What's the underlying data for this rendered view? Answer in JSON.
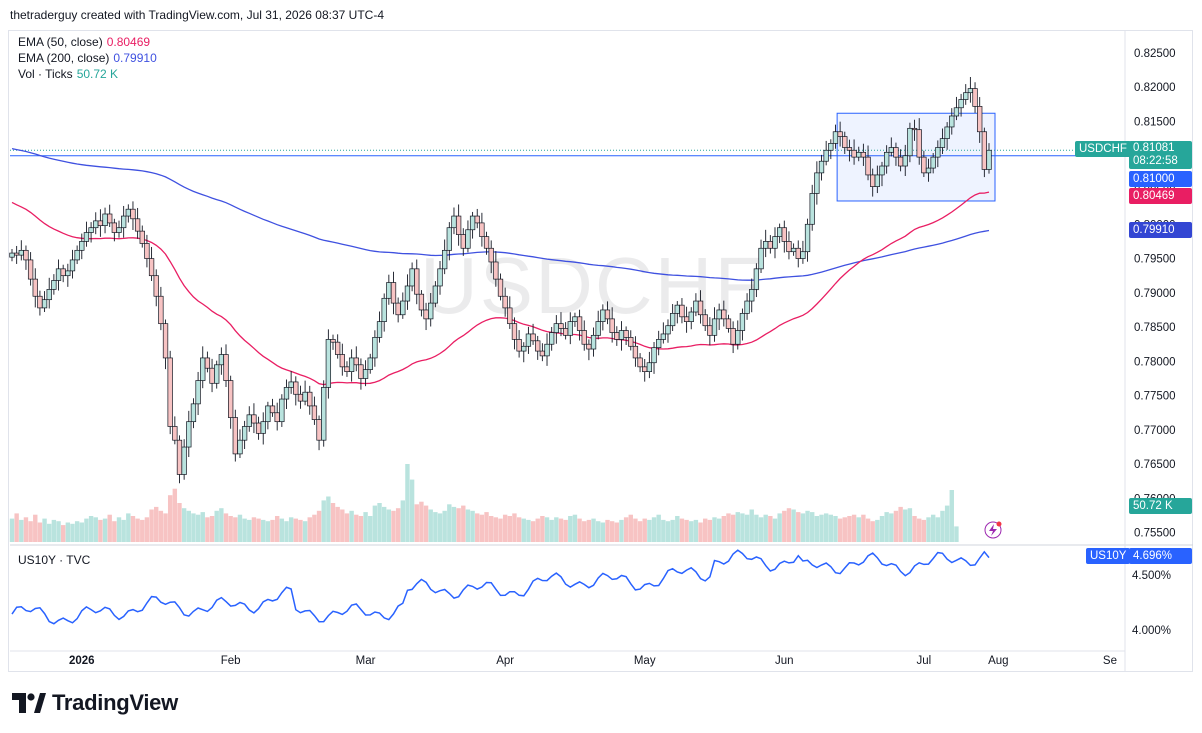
{
  "header": {
    "attribution": "thetraderguy created with TradingView.com, Jul 31, 2026 08:37 UTC-4"
  },
  "legend": {
    "ema50": {
      "label": "EMA (50, close)",
      "value": "0.80469",
      "color": "#e91e63"
    },
    "ema200": {
      "label": "EMA (200, close)",
      "value": "0.79910",
      "color": "#3f51e0"
    },
    "vol": {
      "label": "Vol · Ticks",
      "value": "50.72 K",
      "color": "#26a69a"
    }
  },
  "watermark": "USDCHF",
  "price_tags": {
    "symbol": {
      "name": "USDCHF",
      "price": "0.81081",
      "countdown": "08:22:58"
    },
    "hline": "0.81000",
    "ema50": "0.80469",
    "ema200": "0.79910",
    "volume": "50.72 K"
  },
  "lower_pane": {
    "title": "US10Y · TVC",
    "symbol_tag": "US10Y",
    "value_tag": "4.696%",
    "ticks": [
      "4.500%",
      "4.000%"
    ]
  },
  "brand": {
    "name": "TradingView"
  },
  "chart_data": {
    "type": "candlestick",
    "symbol": "USDCHF",
    "x_ticks": [
      "2026",
      "Feb",
      "Mar",
      "Apr",
      "May",
      "Jun",
      "Jul",
      "Aug",
      "Se"
    ],
    "y_ticks": [
      0.825,
      0.82,
      0.815,
      0.81,
      0.805,
      0.8,
      0.795,
      0.79,
      0.785,
      0.78,
      0.775,
      0.77,
      0.765,
      0.76,
      0.755
    ],
    "y_tick_labels": [
      "0.82500",
      "0.82000",
      "0.81500",
      "0.81000",
      "0.80500",
      "0.80000",
      "0.79500",
      "0.79000",
      "0.78500",
      "0.78000",
      "0.77500",
      "0.77000",
      "0.76500",
      "0.76000",
      "0.75500"
    ],
    "ylim": [
      0.7535,
      0.8282
    ],
    "closes": [
      0.7958,
      0.7955,
      0.7962,
      0.7948,
      0.792,
      0.7895,
      0.7878,
      0.789,
      0.7905,
      0.7918,
      0.7935,
      0.7925,
      0.7932,
      0.7948,
      0.7962,
      0.7975,
      0.7988,
      0.7995,
      0.8005,
      0.7998,
      0.8015,
      0.8002,
      0.7988,
      0.7995,
      0.8012,
      0.8022,
      0.8008,
      0.799,
      0.7972,
      0.795,
      0.7925,
      0.7895,
      0.7855,
      0.7805,
      0.7705,
      0.7685,
      0.7635,
      0.7675,
      0.7712,
      0.7738,
      0.7772,
      0.7805,
      0.779,
      0.7768,
      0.7795,
      0.781,
      0.7772,
      0.7718,
      0.7665,
      0.7685,
      0.7705,
      0.7722,
      0.771,
      0.7695,
      0.7712,
      0.7735,
      0.7725,
      0.7712,
      0.7745,
      0.7762,
      0.777,
      0.7752,
      0.7742,
      0.7755,
      0.7735,
      0.7715,
      0.7685,
      0.7762,
      0.7832,
      0.7828,
      0.781,
      0.7792,
      0.7785,
      0.7805,
      0.7795,
      0.7775,
      0.7788,
      0.7805,
      0.7835,
      0.7858,
      0.7892,
      0.7915,
      0.7885,
      0.7868,
      0.7888,
      0.791,
      0.7935,
      0.7898,
      0.7875,
      0.7862,
      0.7885,
      0.791,
      0.7935,
      0.7962,
      0.7995,
      0.8012,
      0.7985,
      0.7965,
      0.7992,
      0.8012,
      0.8002,
      0.7982,
      0.7965,
      0.7945,
      0.792,
      0.7895,
      0.7878,
      0.7855,
      0.7832,
      0.7815,
      0.7822,
      0.784,
      0.783,
      0.7815,
      0.7808,
      0.7825,
      0.7842,
      0.7855,
      0.7848,
      0.7838,
      0.7858,
      0.7865,
      0.7845,
      0.7825,
      0.7818,
      0.7838,
      0.7858,
      0.7875,
      0.7862,
      0.7842,
      0.7832,
      0.7845,
      0.7835,
      0.7822,
      0.7805,
      0.7792,
      0.7785,
      0.7798,
      0.782,
      0.7832,
      0.784,
      0.7852,
      0.787,
      0.7882,
      0.7865,
      0.7858,
      0.7872,
      0.7888,
      0.7868,
      0.7852,
      0.7838,
      0.7862,
      0.7875,
      0.7862,
      0.7848,
      0.7825,
      0.7845,
      0.787,
      0.7888,
      0.7905,
      0.7935,
      0.7965,
      0.7975,
      0.7965,
      0.7982,
      0.7995,
      0.7975,
      0.796,
      0.7965,
      0.795,
      0.796,
      0.8,
      0.8045,
      0.8075,
      0.8092,
      0.8108,
      0.8118,
      0.8135,
      0.8128,
      0.8112,
      0.8108,
      0.8098,
      0.8105,
      0.8098,
      0.8072,
      0.8055,
      0.8072,
      0.8085,
      0.8105,
      0.8112,
      0.8098,
      0.8085,
      0.81,
      0.814,
      0.8138,
      0.8098,
      0.8075,
      0.8082,
      0.8098,
      0.8112,
      0.8125,
      0.8142,
      0.8158,
      0.817,
      0.8182,
      0.8192,
      0.8198,
      0.8172,
      0.8135,
      0.808,
      0.8108
    ],
    "volumes": [
      18,
      22,
      17,
      19,
      16,
      21,
      15,
      18,
      14,
      17,
      16,
      13,
      15,
      14,
      16,
      15,
      18,
      20,
      19,
      17,
      18,
      21,
      16,
      19,
      17,
      22,
      20,
      18,
      17,
      19,
      25,
      27,
      24,
      22,
      36,
      41,
      30,
      26,
      24,
      22,
      21,
      23,
      19,
      20,
      24,
      26,
      22,
      20,
      19,
      21,
      18,
      17,
      19,
      18,
      17,
      16,
      17,
      20,
      18,
      16,
      19,
      18,
      17,
      16,
      19,
      21,
      24,
      32,
      35,
      30,
      27,
      25,
      22,
      24,
      21,
      20,
      23,
      20,
      28,
      30,
      27,
      25,
      24,
      26,
      32,
      60,
      48,
      29,
      31,
      28,
      25,
      23,
      22,
      24,
      29,
      27,
      26,
      28,
      25,
      24,
      22,
      21,
      23,
      20,
      19,
      18,
      21,
      20,
      22,
      19,
      18,
      17,
      16,
      18,
      20,
      19,
      17,
      19,
      18,
      17,
      20,
      21,
      18,
      16,
      17,
      18,
      16,
      15,
      17,
      16,
      15,
      17,
      19,
      21,
      18,
      16,
      18,
      17,
      19,
      21,
      17,
      16,
      17,
      20,
      18,
      17,
      16,
      17,
      15,
      18,
      17,
      19,
      18,
      20,
      22,
      21,
      23,
      22,
      21,
      25,
      21,
      19,
      21,
      20,
      18,
      22,
      24,
      26,
      25,
      23,
      22,
      24,
      23,
      20,
      21,
      22,
      21,
      20,
      18,
      19,
      20,
      21,
      19,
      21,
      18,
      16,
      17,
      20,
      23,
      22,
      24,
      27,
      25,
      26,
      20,
      18,
      17,
      19,
      21,
      19,
      24,
      28,
      40,
      12
    ],
    "ema50_end": 0.80469,
    "ema200_end": 0.7991,
    "us10y_ylim": [
      3.9,
      4.74
    ],
    "us10y_start": 4.12,
    "us10y_end": 4.696
  }
}
